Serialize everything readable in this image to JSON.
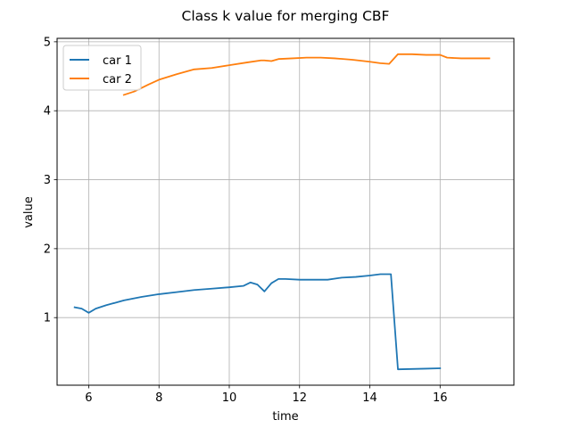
{
  "chart_data": {
    "type": "line",
    "title": "Class k value for merging CBF",
    "xlabel": "time",
    "ylabel": "value",
    "xlim": [
      5.1,
      18.1
    ],
    "ylim": [
      0.02,
      5.05
    ],
    "xticks": [
      6,
      8,
      10,
      12,
      14,
      16
    ],
    "yticks": [
      1,
      2,
      3,
      4,
      5
    ],
    "grid": true,
    "legend_position": "upper-left",
    "series": [
      {
        "name": "car 1",
        "color": "#1f77b4",
        "x": [
          5.6,
          5.8,
          6.0,
          6.2,
          6.5,
          7.0,
          7.5,
          8.0,
          8.5,
          9.0,
          9.5,
          10.0,
          10.4,
          10.6,
          10.8,
          11.0,
          11.2,
          11.4,
          11.6,
          12.0,
          12.4,
          12.8,
          13.2,
          13.6,
          14.0,
          14.3,
          14.6,
          14.8,
          15.2,
          15.6,
          16.0
        ],
        "y": [
          1.15,
          1.13,
          1.07,
          1.13,
          1.18,
          1.25,
          1.3,
          1.34,
          1.37,
          1.4,
          1.42,
          1.44,
          1.46,
          1.51,
          1.48,
          1.38,
          1.5,
          1.56,
          1.56,
          1.55,
          1.55,
          1.55,
          1.58,
          1.59,
          1.61,
          1.63,
          1.63,
          0.25,
          0.255,
          0.26,
          0.265
        ]
      },
      {
        "name": "car 2",
        "color": "#ff7f0e",
        "x": [
          7.0,
          7.3,
          7.7,
          8.0,
          8.5,
          9.0,
          9.5,
          10.0,
          10.5,
          10.9,
          11.0,
          11.2,
          11.4,
          11.8,
          12.2,
          12.6,
          13.0,
          13.5,
          14.0,
          14.3,
          14.55,
          14.8,
          15.2,
          15.6,
          16.0,
          16.2,
          16.6,
          17.0,
          17.4
        ],
        "y": [
          4.23,
          4.28,
          4.38,
          4.45,
          4.53,
          4.6,
          4.62,
          4.66,
          4.7,
          4.73,
          4.73,
          4.72,
          4.75,
          4.76,
          4.77,
          4.77,
          4.76,
          4.74,
          4.71,
          4.69,
          4.68,
          4.82,
          4.82,
          4.81,
          4.81,
          4.77,
          4.76,
          4.76,
          4.76
        ]
      }
    ]
  }
}
